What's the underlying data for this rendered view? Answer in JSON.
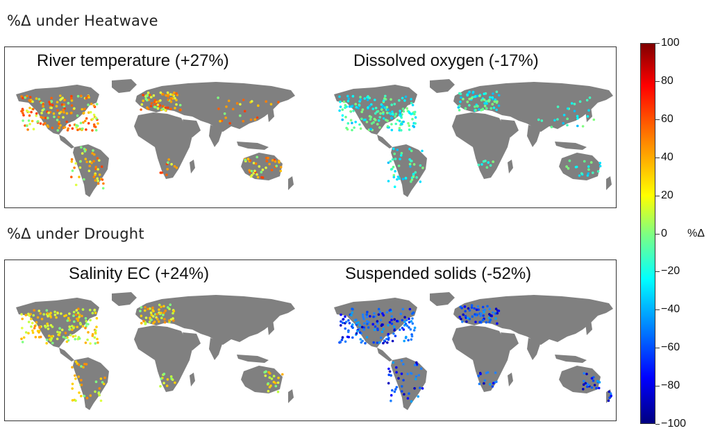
{
  "heatwave": {
    "title": "%Δ under Heatwave",
    "maps": [
      {
        "title": "River temperature (+27%)",
        "palette": "warm"
      },
      {
        "title": "Dissolved oxygen (-17%)",
        "palette": "cool"
      }
    ]
  },
  "drought": {
    "title": "%Δ under Drought",
    "maps": [
      {
        "title": "Salinity EC (+24%)",
        "palette": "warmsoft"
      },
      {
        "title": "Suspended solids (-52%)",
        "palette": "blue"
      }
    ]
  },
  "colorbar": {
    "label": "%Δ",
    "ticks": [
      "100",
      "80",
      "60",
      "40",
      "20",
      "0",
      "−20",
      "−40",
      "−60",
      "−80",
      "−100"
    ],
    "colors": {
      "land": "#808080",
      "high": "#800000",
      "mid": "#80ff80",
      "low": "#000080"
    }
  }
}
